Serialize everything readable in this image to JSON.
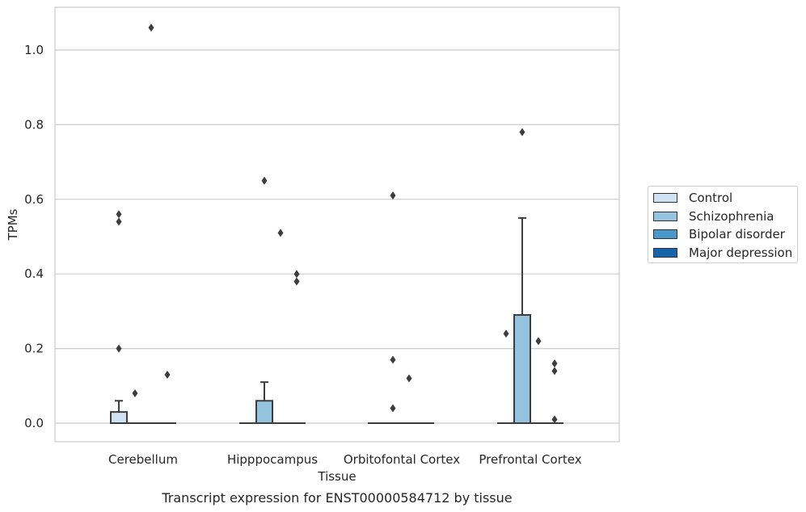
{
  "chart_data": {
    "type": "box",
    "title": "",
    "caption": "Transcript expression for ENST00000584712 by tissue",
    "xlabel": "Tissue",
    "ylabel": "TPMs",
    "ylim": [
      -0.05,
      1.12
    ],
    "yticks": [
      0.0,
      0.2,
      0.4,
      0.6,
      0.8,
      1.0
    ],
    "ytick_labels": [
      "0.0",
      "0.2",
      "0.4",
      "0.6",
      "0.8",
      "1.0"
    ],
    "grid": true,
    "legend_position": "right",
    "categories": [
      "Cerebellum",
      "Hipppocampus",
      "Orbitofontal Cortex",
      "Prefrontal Cortex"
    ],
    "series": [
      {
        "name": "Control",
        "color": "#d0e1f2",
        "boxes": [
          {
            "q1": 0.0,
            "median": 0.0,
            "q3": 0.03,
            "whisker_low": 0.0,
            "whisker_high": 0.06,
            "outliers": [
              0.2,
              0.54,
              0.56
            ]
          },
          {
            "q1": 0.0,
            "median": 0.0,
            "q3": 0.0,
            "whisker_low": 0.0,
            "whisker_high": 0.0,
            "outliers": []
          },
          {
            "q1": 0.0,
            "median": 0.0,
            "q3": 0.0,
            "whisker_low": 0.0,
            "whisker_high": 0.0,
            "outliers": []
          },
          {
            "q1": 0.0,
            "median": 0.0,
            "q3": 0.0,
            "whisker_low": 0.0,
            "whisker_high": 0.0,
            "outliers": [
              0.24
            ]
          }
        ]
      },
      {
        "name": "Schizophrenia",
        "color": "#94c4df",
        "boxes": [
          {
            "q1": 0.0,
            "median": 0.0,
            "q3": 0.0,
            "whisker_low": 0.0,
            "whisker_high": 0.0,
            "outliers": [
              0.08
            ]
          },
          {
            "q1": 0.0,
            "median": 0.0,
            "q3": 0.06,
            "whisker_low": 0.0,
            "whisker_high": 0.11,
            "outliers": [
              0.65
            ]
          },
          {
            "q1": 0.0,
            "median": 0.0,
            "q3": 0.0,
            "whisker_low": 0.0,
            "whisker_high": 0.0,
            "outliers": [
              0.04,
              0.17,
              0.61
            ]
          },
          {
            "q1": 0.0,
            "median": 0.0,
            "q3": 0.29,
            "whisker_low": 0.0,
            "whisker_high": 0.55,
            "outliers": [
              0.78
            ]
          }
        ]
      },
      {
        "name": "Bipolar disorder",
        "color": "#4a98c9",
        "boxes": [
          {
            "q1": 0.0,
            "median": 0.0,
            "q3": 0.0,
            "whisker_low": 0.0,
            "whisker_high": 0.0,
            "outliers": [
              1.06
            ]
          },
          {
            "q1": 0.0,
            "median": 0.0,
            "q3": 0.0,
            "whisker_low": 0.0,
            "whisker_high": 0.0,
            "outliers": [
              0.51
            ]
          },
          {
            "q1": 0.0,
            "median": 0.0,
            "q3": 0.0,
            "whisker_low": 0.0,
            "whisker_high": 0.0,
            "outliers": [
              0.12
            ]
          },
          {
            "q1": 0.0,
            "median": 0.0,
            "q3": 0.0,
            "whisker_low": 0.0,
            "whisker_high": 0.0,
            "outliers": [
              0.22
            ]
          }
        ]
      },
      {
        "name": "Major depression",
        "color": "#1764ab",
        "boxes": [
          {
            "q1": 0.0,
            "median": 0.0,
            "q3": 0.0,
            "whisker_low": 0.0,
            "whisker_high": 0.0,
            "outliers": [
              0.13
            ]
          },
          {
            "q1": 0.0,
            "median": 0.0,
            "q3": 0.0,
            "whisker_low": 0.0,
            "whisker_high": 0.0,
            "outliers": [
              0.38,
              0.4
            ]
          },
          {
            "q1": 0.0,
            "median": 0.0,
            "q3": 0.0,
            "whisker_low": 0.0,
            "whisker_high": 0.0,
            "outliers": []
          },
          {
            "q1": 0.0,
            "median": 0.0,
            "q3": 0.0,
            "whisker_low": 0.0,
            "whisker_high": 0.0,
            "outliers": [
              0.01,
              0.14,
              0.16
            ]
          }
        ]
      }
    ]
  }
}
